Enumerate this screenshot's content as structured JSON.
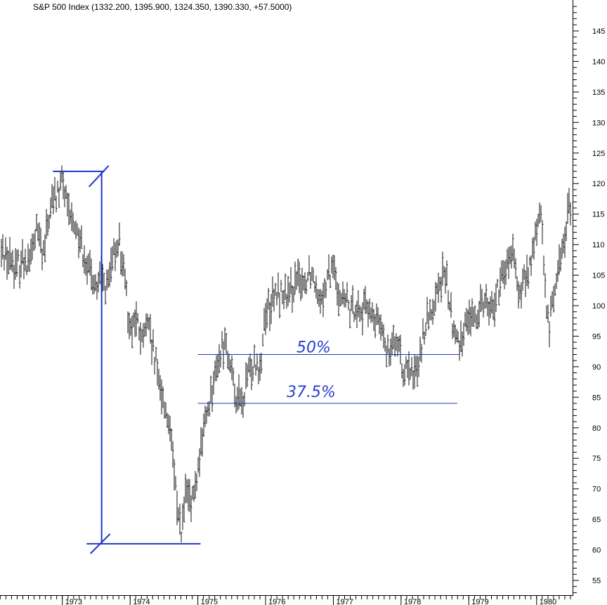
{
  "chart_data": {
    "type": "ohlc",
    "title": "S&P 500 Index (1332.200, 1395.900, 1324.350, 1390.330, +57.5000)",
    "x_tick_labels": [
      "1973",
      "1974",
      "1975",
      "1976",
      "1977",
      "1978",
      "1979",
      "1980"
    ],
    "x_tick_years": [
      1973,
      1974,
      1975,
      1976,
      1977,
      1978,
      1979,
      1980
    ],
    "x_range": [
      1972.08,
      1980.5
    ],
    "y_tick_values": [
      55,
      60,
      65,
      70,
      75,
      80,
      85,
      90,
      95,
      100,
      105,
      110,
      115,
      120,
      125,
      130,
      135,
      140,
      145
    ],
    "y_tick_labels": [
      "55",
      "60",
      "65",
      "70",
      "75",
      "80",
      "85",
      "90",
      "95",
      "100",
      "105",
      "110",
      "115",
      "120",
      "125",
      "130",
      "135",
      "140",
      "145"
    ],
    "ylim": [
      52.5,
      150.5
    ],
    "price_path": [
      [
        1972.08,
        109
      ],
      [
        1972.2,
        108
      ],
      [
        1972.3,
        106
      ],
      [
        1972.42,
        108
      ],
      [
        1972.5,
        107
      ],
      [
        1972.62,
        112
      ],
      [
        1972.72,
        108
      ],
      [
        1972.82,
        116
      ],
      [
        1972.92,
        118
      ],
      [
        1973.0,
        121
      ],
      [
        1973.08,
        115
      ],
      [
        1973.16,
        114
      ],
      [
        1973.28,
        110
      ],
      [
        1973.4,
        106
      ],
      [
        1973.5,
        103
      ],
      [
        1973.58,
        105
      ],
      [
        1973.67,
        103
      ],
      [
        1973.75,
        108
      ],
      [
        1973.83,
        111
      ],
      [
        1973.92,
        104
      ],
      [
        1974.0,
        96
      ],
      [
        1974.08,
        98
      ],
      [
        1974.17,
        94
      ],
      [
        1974.25,
        97
      ],
      [
        1974.33,
        93
      ],
      [
        1974.42,
        88
      ],
      [
        1974.5,
        84
      ],
      [
        1974.58,
        80
      ],
      [
        1974.67,
        70
      ],
      [
        1974.75,
        63
      ],
      [
        1974.83,
        70
      ],
      [
        1974.9,
        67
      ],
      [
        1974.96,
        70
      ],
      [
        1975.0,
        73
      ],
      [
        1975.08,
        80
      ],
      [
        1975.17,
        84
      ],
      [
        1975.25,
        88
      ],
      [
        1975.33,
        92
      ],
      [
        1975.42,
        95
      ],
      [
        1975.5,
        88
      ],
      [
        1975.58,
        85
      ],
      [
        1975.67,
        84
      ],
      [
        1975.75,
        89
      ],
      [
        1975.83,
        91
      ],
      [
        1975.92,
        90
      ],
      [
        1976.0,
        99
      ],
      [
        1976.08,
        100
      ],
      [
        1976.17,
        102
      ],
      [
        1976.25,
        102
      ],
      [
        1976.33,
        101
      ],
      [
        1976.42,
        103
      ],
      [
        1976.5,
        104
      ],
      [
        1976.58,
        104
      ],
      [
        1976.67,
        106
      ],
      [
        1976.75,
        103
      ],
      [
        1976.83,
        102
      ],
      [
        1976.92,
        104
      ],
      [
        1977.0,
        106
      ],
      [
        1977.08,
        102
      ],
      [
        1977.17,
        101
      ],
      [
        1977.25,
        99
      ],
      [
        1977.33,
        100
      ],
      [
        1977.42,
        99
      ],
      [
        1977.5,
        100
      ],
      [
        1977.58,
        98
      ],
      [
        1977.67,
        97
      ],
      [
        1977.75,
        94
      ],
      [
        1977.83,
        93
      ],
      [
        1977.92,
        95
      ],
      [
        1978.0,
        91
      ],
      [
        1978.08,
        89
      ],
      [
        1978.17,
        88
      ],
      [
        1978.25,
        91
      ],
      [
        1978.33,
        96
      ],
      [
        1978.42,
        98
      ],
      [
        1978.5,
        101
      ],
      [
        1978.58,
        104
      ],
      [
        1978.67,
        105
      ],
      [
        1978.75,
        97
      ],
      [
        1978.83,
        94
      ],
      [
        1978.92,
        96
      ],
      [
        1979.0,
        99
      ],
      [
        1979.08,
        97
      ],
      [
        1979.17,
        101
      ],
      [
        1979.25,
        101
      ],
      [
        1979.33,
        99
      ],
      [
        1979.42,
        102
      ],
      [
        1979.5,
        104
      ],
      [
        1979.58,
        107
      ],
      [
        1979.67,
        108
      ],
      [
        1979.75,
        101
      ],
      [
        1979.83,
        104
      ],
      [
        1979.92,
        107
      ],
      [
        1980.0,
        112
      ],
      [
        1980.05,
        117
      ],
      [
        1980.12,
        104
      ],
      [
        1980.18,
        95
      ],
      [
        1980.25,
        102
      ],
      [
        1980.32,
        106
      ],
      [
        1980.4,
        110
      ],
      [
        1980.47,
        116
      ],
      [
        1980.5,
        116
      ]
    ],
    "annotations": {
      "labels": [
        "50%",
        "37.5%"
      ],
      "levels": [
        92,
        84
      ],
      "level_x_ranges": [
        [
          1975.0,
          1978.87
        ],
        [
          1975.0,
          1978.83
        ]
      ],
      "measure_x": 1973.58,
      "measure_high": 122,
      "measure_low": 61,
      "high_line_x_range": [
        1972.86,
        1973.62
      ],
      "low_line_x_range": [
        1973.36,
        1975.04
      ]
    },
    "colors": {
      "bars": "#111111",
      "annotation": "#1f35c9",
      "handwriting": "#2a3fcf"
    },
    "grid": false
  }
}
